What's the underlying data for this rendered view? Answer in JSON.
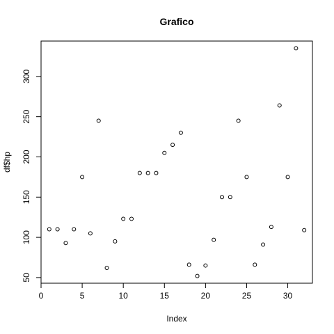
{
  "chart_data": {
    "type": "scatter",
    "title": "Grafico",
    "xlabel": "Index",
    "ylabel": "df$hp",
    "xlim": [
      0,
      33
    ],
    "ylim": [
      43,
      344
    ],
    "xticks": [
      0,
      5,
      10,
      15,
      20,
      25,
      30
    ],
    "yticks": [
      50,
      100,
      150,
      200,
      250,
      300
    ],
    "grid": false,
    "legend": "none",
    "marker": "open-circle",
    "color": "#000000",
    "x": [
      1,
      2,
      3,
      4,
      5,
      6,
      7,
      8,
      9,
      10,
      11,
      12,
      13,
      14,
      15,
      16,
      17,
      18,
      19,
      20,
      21,
      22,
      23,
      24,
      25,
      26,
      27,
      28,
      29,
      30,
      31,
      32
    ],
    "y": [
      110,
      110,
      93,
      110,
      175,
      105,
      245,
      62,
      95,
      123,
      123,
      180,
      180,
      180,
      205,
      215,
      230,
      66,
      52,
      65,
      97,
      150,
      150,
      245,
      175,
      66,
      91,
      113,
      264,
      175,
      335,
      109
    ]
  }
}
